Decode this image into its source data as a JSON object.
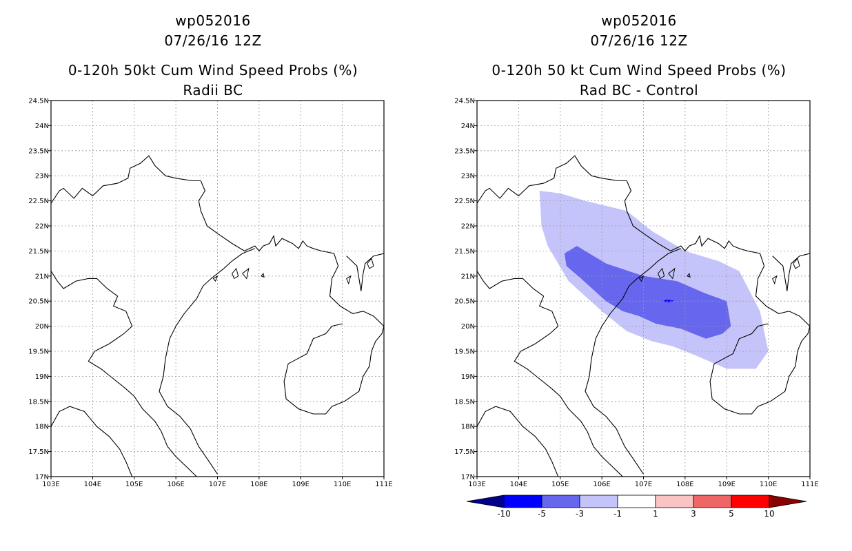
{
  "left_panel": {
    "title_lines": [
      "wp052016",
      "07/26/16 12Z",
      "0-120h 50kt Cum Wind Speed Probs (%)",
      "Radii BC"
    ]
  },
  "right_panel": {
    "title_lines": [
      "wp052016",
      "07/26/16 12Z",
      "0-120h 50 kt Cum Wind Speed Probs (%)",
      "Rad BC - Control"
    ]
  },
  "axes": {
    "lon_range": [
      103,
      111
    ],
    "lat_range": [
      17,
      24.5
    ],
    "lon_ticks": [
      "103E",
      "104E",
      "105E",
      "106E",
      "107E",
      "108E",
      "109E",
      "110E",
      "111E"
    ],
    "lat_ticks": [
      "17N",
      "17.5N",
      "18N",
      "18.5N",
      "19N",
      "19.5N",
      "20N",
      "20.5N",
      "21N",
      "21.5N",
      "22N",
      "22.5N",
      "23N",
      "23.5N",
      "24N",
      "24.5N"
    ]
  },
  "colorbar": {
    "labels": [
      "-10",
      "-5",
      "-3",
      "-1",
      "1",
      "3",
      "5",
      "10"
    ],
    "colors": [
      "#00008b",
      "#0000ff",
      "#6666ee",
      "#c4c4fa",
      "#ffffff",
      "#fac4c4",
      "#ee6666",
      "#ff0000",
      "#8b0000"
    ]
  },
  "difference_contours": {
    "unit": "%",
    "levels": [
      {
        "level": "-1 to -3",
        "color": "#c4c4fa",
        "polygon_lonlat": [
          [
            104.5,
            22.7
          ],
          [
            105.0,
            22.65
          ],
          [
            105.6,
            22.5
          ],
          [
            106.6,
            22.3
          ],
          [
            107.2,
            21.9
          ],
          [
            108.0,
            21.5
          ],
          [
            108.8,
            21.3
          ],
          [
            109.3,
            21.1
          ],
          [
            109.8,
            20.3
          ],
          [
            110.0,
            19.5
          ],
          [
            109.7,
            19.15
          ],
          [
            109.0,
            19.15
          ],
          [
            108.3,
            19.4
          ],
          [
            107.7,
            19.6
          ],
          [
            107.2,
            19.7
          ],
          [
            106.6,
            19.9
          ],
          [
            106.0,
            20.3
          ],
          [
            105.2,
            20.9
          ],
          [
            104.7,
            21.6
          ],
          [
            104.55,
            22.0
          ]
        ]
      },
      {
        "level": "-3 to -5",
        "color": "#6666ee",
        "polygon_lonlat": [
          [
            105.1,
            21.45
          ],
          [
            105.4,
            21.6
          ],
          [
            106.1,
            21.25
          ],
          [
            107.0,
            21.0
          ],
          [
            107.8,
            20.9
          ],
          [
            108.5,
            20.65
          ],
          [
            109.0,
            20.5
          ],
          [
            109.1,
            20.0
          ],
          [
            108.9,
            19.85
          ],
          [
            108.5,
            19.75
          ],
          [
            107.9,
            19.95
          ],
          [
            107.3,
            20.05
          ],
          [
            106.9,
            20.2
          ],
          [
            106.5,
            20.3
          ],
          [
            106.1,
            20.5
          ],
          [
            105.5,
            20.95
          ],
          [
            105.15,
            21.2
          ]
        ]
      },
      {
        "level": "-5 to -10",
        "color": "#0000ff",
        "polygon_lonlat": [
          [
            107.45,
            20.5
          ],
          [
            107.55,
            20.53
          ],
          [
            107.75,
            20.51
          ],
          [
            107.6,
            20.48
          ]
        ]
      }
    ]
  }
}
